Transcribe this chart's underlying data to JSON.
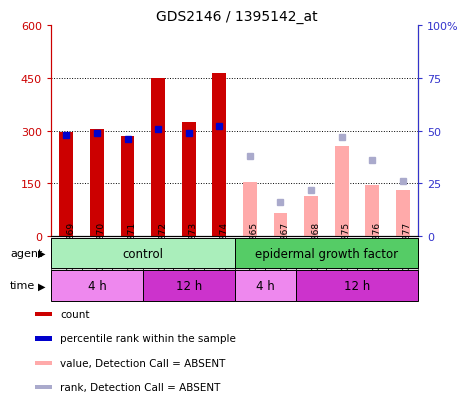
{
  "title": "GDS2146 / 1395142_at",
  "samples": [
    "GSM75269",
    "GSM75270",
    "GSM75271",
    "GSM75272",
    "GSM75273",
    "GSM75274",
    "GSM75265",
    "GSM75267",
    "GSM75268",
    "GSM75275",
    "GSM75276",
    "GSM75277"
  ],
  "bar_values": [
    295,
    305,
    285,
    450,
    325,
    465,
    null,
    null,
    null,
    null,
    null,
    null
  ],
  "bar_color_present": "#cc0000",
  "bar_values_absent": [
    null,
    null,
    null,
    null,
    null,
    null,
    155,
    65,
    115,
    255,
    145,
    130
  ],
  "bar_color_absent": "#ffaaaa",
  "dot_values_present": [
    48,
    49,
    46,
    51,
    49,
    52,
    null,
    null,
    null,
    null,
    null,
    null
  ],
  "dot_color_present": "#0000cc",
  "dot_values_absent": [
    null,
    null,
    null,
    null,
    null,
    null,
    38,
    16,
    22,
    47,
    36,
    26
  ],
  "dot_color_absent": "#aaaacc",
  "ylim_left": [
    0,
    600
  ],
  "ylim_right": [
    0,
    100
  ],
  "yticks_left": [
    0,
    150,
    300,
    450,
    600
  ],
  "yticks_right": [
    0,
    25,
    50,
    75,
    100
  ],
  "ytick_labels_left": [
    "0",
    "150",
    "300",
    "450",
    "600"
  ],
  "ytick_labels_right": [
    "0",
    "25",
    "50",
    "75",
    "100%"
  ],
  "left_tick_color": "#cc0000",
  "right_tick_color": "#3333cc",
  "agent_row": [
    {
      "label": "control",
      "start": 0,
      "end": 6,
      "color": "#aaeebb"
    },
    {
      "label": "epidermal growth factor",
      "start": 6,
      "end": 12,
      "color": "#55cc66"
    }
  ],
  "time_row": [
    {
      "label": "4 h",
      "start": 0,
      "end": 3,
      "color": "#ee88ee"
    },
    {
      "label": "12 h",
      "start": 3,
      "end": 6,
      "color": "#cc33cc"
    },
    {
      "label": "4 h",
      "start": 6,
      "end": 8,
      "color": "#ee88ee"
    },
    {
      "label": "12 h",
      "start": 8,
      "end": 12,
      "color": "#cc33cc"
    }
  ],
  "legend_items": [
    {
      "label": "count",
      "color": "#cc0000"
    },
    {
      "label": "percentile rank within the sample",
      "color": "#0000cc"
    },
    {
      "label": "value, Detection Call = ABSENT",
      "color": "#ffaaaa"
    },
    {
      "label": "rank, Detection Call = ABSENT",
      "color": "#aaaacc"
    }
  ],
  "bar_width": 0.45,
  "dot_size": 5
}
